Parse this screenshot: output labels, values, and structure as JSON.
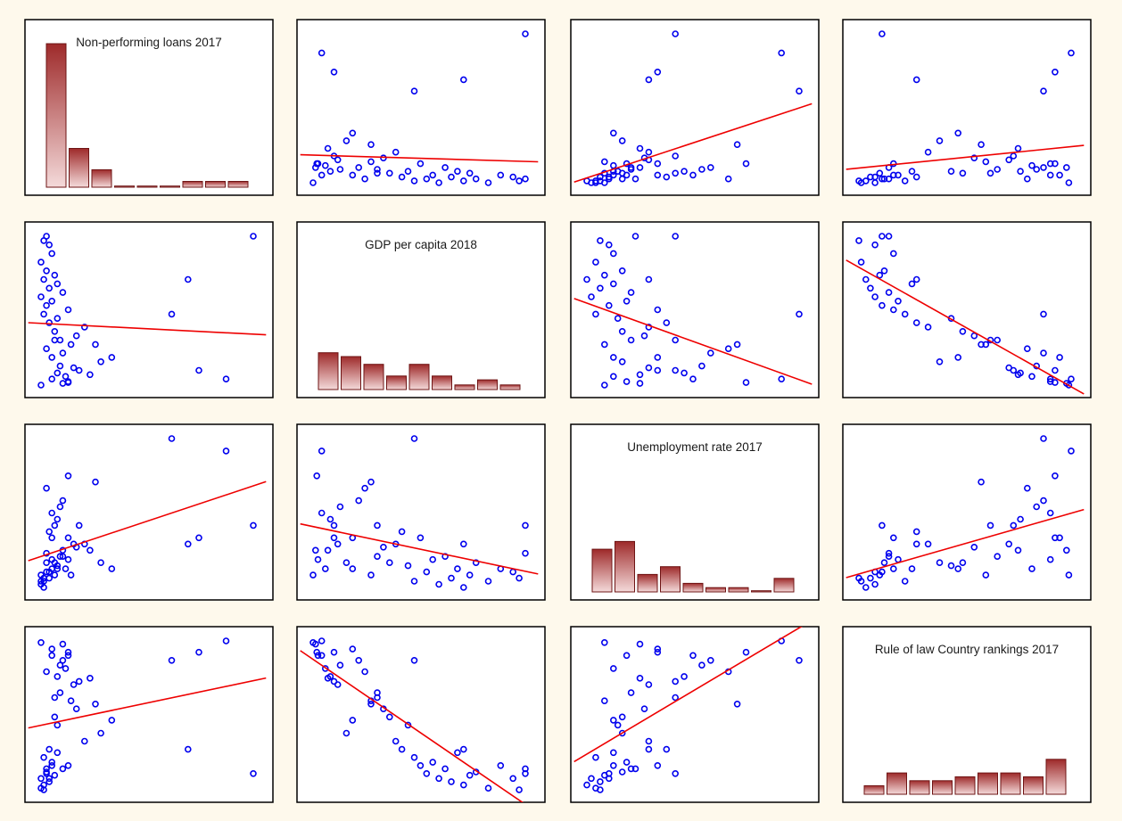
{
  "chart_data": {
    "type": "scatter",
    "variables": [
      "Non-performing loans 2017",
      "GDP per capita 2018",
      "Unemployment rate 2017",
      "Rule of law Country rankings 2017"
    ],
    "histograms": [
      {
        "variable": "Non-performing loans 2017",
        "counts": [
          37,
          10,
          4.5,
          0.3,
          0.3,
          0.3,
          1.5,
          1.5,
          1.5
        ]
      },
      {
        "variable": "GDP per capita 2018",
        "counts": [
          9.5,
          8.5,
          6.5,
          3.5,
          6.5,
          3.5,
          1.2,
          2.5,
          1.2
        ]
      },
      {
        "variable": "Unemployment rate 2017",
        "counts": [
          11,
          13,
          4.5,
          6.5,
          2.2,
          1.1,
          1.1,
          0.3,
          3.5
        ]
      },
      {
        "variable": "Rule of law Country rankings 2017",
        "counts": [
          2.2,
          5.5,
          3.5,
          3.5,
          4.5,
          5.5,
          5.5,
          4.5,
          9
        ]
      }
    ],
    "observations": [
      [
        5.0,
        10.0,
        8.0,
        95
      ],
      [
        6.0,
        11.0,
        20.0,
        90
      ],
      [
        3.0,
        15.0,
        14.0,
        88
      ],
      [
        5.5,
        18.0,
        5.0,
        80
      ],
      [
        4.0,
        22.0,
        13.0,
        75
      ],
      [
        8.0,
        25.0,
        12.0,
        72
      ],
      [
        7.0,
        28.0,
        9.0,
        70
      ],
      [
        12.0,
        35.0,
        6.0,
        40
      ],
      [
        3.0,
        40.0,
        10.0,
        92
      ],
      [
        5.0,
        45.0,
        16.0,
        85
      ],
      [
        2.0,
        50.0,
        18.0,
        78
      ],
      [
        6.5,
        55.0,
        4.0,
        60
      ],
      [
        4.5,
        60.0,
        7.0,
        65
      ],
      [
        7.5,
        65.0,
        8.5,
        55
      ],
      [
        3.5,
        70.0,
        6.0,
        50
      ],
      [
        9.0,
        75.0,
        9.0,
        35
      ],
      [
        2.5,
        80.0,
        11.0,
        30
      ],
      [
        4.0,
        85.0,
        5.5,
        45
      ],
      [
        1.5,
        90.0,
        3.0,
        25
      ],
      [
        6.0,
        95.0,
        10.0,
        20
      ],
      [
        2.0,
        100.0,
        4.5,
        15
      ],
      [
        3.0,
        105.0,
        6.5,
        22
      ],
      [
        1.0,
        110.0,
        2.5,
        12
      ],
      [
        5.0,
        115.0,
        7.0,
        18
      ],
      [
        2.5,
        120.0,
        3.5,
        10
      ],
      [
        4.0,
        125.0,
        5.0,
        28
      ],
      [
        1.5,
        130.0,
        2.0,
        8
      ],
      [
        3.5,
        135.0,
        4.0,
        14
      ],
      [
        2.0,
        140.0,
        6.0,
        16
      ],
      [
        1.0,
        150.0,
        3.0,
        6
      ],
      [
        3.0,
        160.0,
        5.0,
        20
      ],
      [
        2.5,
        170.0,
        4.5,
        12
      ],
      [
        1.5,
        175.0,
        3.5,
        5
      ],
      [
        2.0,
        180.0,
        7.5,
        18
      ],
      [
        3.5,
        60.0,
        12.0,
        62
      ],
      [
        4.5,
        30.0,
        15.0,
        82
      ],
      [
        1.0,
        8.0,
        4.0,
        96
      ],
      [
        6.0,
        12.0,
        6.5,
        88
      ],
      [
        10.0,
        20.0,
        8.0,
        74
      ],
      [
        14.0,
        40.0,
        5.0,
        48
      ],
      [
        11.0,
        55.0,
        19.0,
        58
      ],
      [
        35.0,
        15.0,
        24.0,
        97
      ],
      [
        30.0,
        25.0,
        10.0,
        90
      ],
      [
        28.0,
        130.0,
        9.0,
        30
      ],
      [
        25.0,
        90.0,
        26.0,
        85
      ],
      [
        40.0,
        180.0,
        12.0,
        15
      ]
    ]
  }
}
